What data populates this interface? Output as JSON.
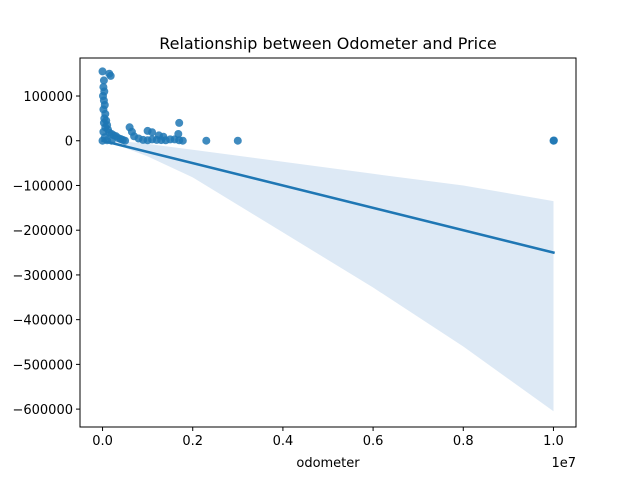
{
  "chart_data": {
    "type": "scatter",
    "title": "Relationship between Odometer and Price",
    "xlabel": "odometer",
    "ylabel": "",
    "x_offset_label": "1e7",
    "xlim": [
      -0.05,
      1.05
    ],
    "ylim": [
      -640000,
      185000
    ],
    "x_ticks": [
      0.0,
      0.2,
      0.4,
      0.6,
      0.8,
      1.0
    ],
    "x_tick_labels": [
      "0.0",
      "0.2",
      "0.4",
      "0.6",
      "0.8",
      "1.0"
    ],
    "y_ticks": [
      100000,
      0,
      -100000,
      -200000,
      -300000,
      -400000,
      -500000,
      -600000
    ],
    "y_tick_labels": [
      "100000",
      "0",
      "−100000",
      "−200000",
      "−300000",
      "−400000",
      "−500000",
      "−600000"
    ],
    "grid": false,
    "colors": {
      "points": "#1f77b4",
      "line": "#1f77b4",
      "band": "#c6dbef"
    },
    "points": [
      {
        "x": 0.0,
        "y": 155000
      },
      {
        "x": 0.015,
        "y": 150000
      },
      {
        "x": 0.018,
        "y": 145000
      },
      {
        "x": 0.003,
        "y": 135000
      },
      {
        "x": 0.002,
        "y": 120000
      },
      {
        "x": 0.004,
        "y": 110000
      },
      {
        "x": 0.001,
        "y": 100000
      },
      {
        "x": 0.003,
        "y": 90000
      },
      {
        "x": 0.005,
        "y": 80000
      },
      {
        "x": 0.002,
        "y": 70000
      },
      {
        "x": 0.006,
        "y": 60000
      },
      {
        "x": 0.004,
        "y": 50000
      },
      {
        "x": 0.008,
        "y": 45000
      },
      {
        "x": 0.003,
        "y": 40000
      },
      {
        "x": 0.01,
        "y": 35000
      },
      {
        "x": 0.006,
        "y": 30000
      },
      {
        "x": 0.012,
        "y": 25000
      },
      {
        "x": 0.002,
        "y": 20000
      },
      {
        "x": 0.015,
        "y": 18000
      },
      {
        "x": 0.02,
        "y": 15000
      },
      {
        "x": 0.025,
        "y": 12000
      },
      {
        "x": 0.03,
        "y": 10000
      },
      {
        "x": 0.005,
        "y": 8000
      },
      {
        "x": 0.035,
        "y": 6000
      },
      {
        "x": 0.04,
        "y": 4000
      },
      {
        "x": 0.045,
        "y": 2000
      },
      {
        "x": 0.01,
        "y": 1000
      },
      {
        "x": 0.05,
        "y": 0
      },
      {
        "x": 0.0,
        "y": 0
      },
      {
        "x": 0.02,
        "y": 0
      },
      {
        "x": 0.06,
        "y": 30000
      },
      {
        "x": 0.065,
        "y": 20000
      },
      {
        "x": 0.07,
        "y": 10000
      },
      {
        "x": 0.08,
        "y": 5000
      },
      {
        "x": 0.09,
        "y": 2000
      },
      {
        "x": 0.1,
        "y": 1000
      },
      {
        "x": 0.11,
        "y": 3000
      },
      {
        "x": 0.12,
        "y": 2000
      },
      {
        "x": 0.13,
        "y": 1500
      },
      {
        "x": 0.14,
        "y": 1000
      },
      {
        "x": 0.16,
        "y": 3000
      },
      {
        "x": 0.17,
        "y": 1000
      },
      {
        "x": 0.1,
        "y": 22000
      },
      {
        "x": 0.11,
        "y": 19000
      },
      {
        "x": 0.125,
        "y": 12000
      },
      {
        "x": 0.135,
        "y": 9000
      },
      {
        "x": 0.15,
        "y": 3000
      },
      {
        "x": 0.17,
        "y": 40000
      },
      {
        "x": 0.168,
        "y": 15000
      },
      {
        "x": 0.178,
        "y": 0
      },
      {
        "x": 0.23,
        "y": 0
      },
      {
        "x": 0.3,
        "y": 0
      },
      {
        "x": 1.0,
        "y": 0
      },
      {
        "x": 1.001,
        "y": 500
      }
    ],
    "regression": {
      "x": [
        0.0,
        1.0
      ],
      "y": [
        0,
        -250000
      ]
    },
    "confidence_band": {
      "x": [
        0.0,
        0.01,
        0.05,
        0.1,
        0.2,
        0.4,
        0.6,
        0.8,
        1.0
      ],
      "upper": [
        1500,
        1400,
        -2000,
        -7000,
        -20000,
        -47000,
        -74000,
        -100000,
        -135000
      ],
      "lower": [
        -1500,
        -3500,
        -16000,
        -35000,
        -82000,
        -205000,
        -328000,
        -460000,
        -605000
      ]
    }
  }
}
